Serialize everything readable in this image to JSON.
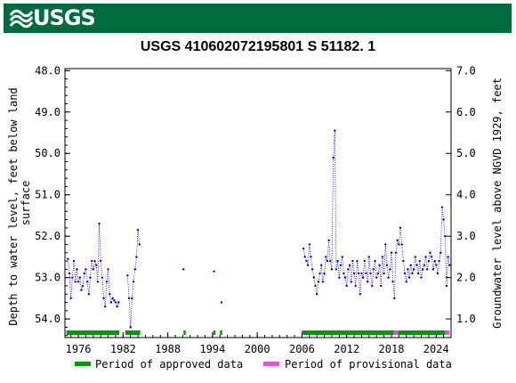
{
  "header": {
    "logo_text": "USGS",
    "title": "USGS 410602072195801 S 51182. 1"
  },
  "colors": {
    "banner": "#006b3f",
    "points": "#0000cc",
    "approved": "#009900",
    "provisional": "#e64de6"
  },
  "chart_data": {
    "type": "scatter",
    "title": "USGS 410602072195801 S 51182. 1",
    "ylabel": "Depth to water level, feet below land surface",
    "y2label": "Groundwater level above NGVD 1929, feet",
    "xlim": [
      1974.2,
      2026.0
    ],
    "ylim": [
      54.45,
      47.95
    ],
    "y_inverted": true,
    "xticks": [
      "1976",
      "1982",
      "1988",
      "1994",
      "2000",
      "2006",
      "2012",
      "2018",
      "2024"
    ],
    "yticks": [
      "48.0",
      "49.0",
      "50.0",
      "51.0",
      "52.0",
      "53.0",
      "54.0"
    ],
    "y2ticks": [
      "7.0",
      "6.0",
      "5.0",
      "4.0",
      "3.0",
      "2.0",
      "1.0"
    ],
    "y2_offset": 55.0,
    "grid": false,
    "legend_position": "bottom",
    "legend": [
      {
        "label": "Period of approved data",
        "color": "#009900"
      },
      {
        "label": "Period of provisional data",
        "color": "#e64de6"
      }
    ],
    "approved_periods": [
      [
        1974.4,
        1981.5
      ],
      [
        1982.3,
        1984.3
      ],
      [
        1990.1,
        1990.4
      ],
      [
        1994.1,
        1994.4
      ],
      [
        1995.0,
        1995.3
      ],
      [
        2006.0,
        2018.3
      ],
      [
        2018.9,
        2025.2
      ]
    ],
    "provisional_periods": [
      [
        2018.3,
        2018.9
      ],
      [
        2025.2,
        2025.8
      ]
    ],
    "series": [
      {
        "x": [
          1974.6,
          1974.8,
          1975.0,
          1975.2,
          1975.4,
          1975.6,
          1975.8,
          1976.0,
          1976.2,
          1976.4,
          1976.6,
          1976.8,
          1977.0,
          1977.2,
          1977.4,
          1977.6,
          1977.8,
          1978.0,
          1978.2,
          1978.4,
          1978.6,
          1978.8,
          1979.0,
          1979.2,
          1979.4,
          1979.6,
          1979.8,
          1980.0,
          1980.2,
          1980.4,
          1980.6,
          1980.8,
          1981.0,
          1981.2,
          1981.4,
          1982.6,
          1982.8,
          1983.0,
          1983.2,
          1983.4,
          1983.6,
          1983.8,
          1984.0,
          1984.2,
          1990.1,
          1994.2,
          1995.2,
          2006.2,
          2006.4,
          2006.6,
          2006.8,
          2007.0,
          2007.2,
          2007.4,
          2007.6,
          2007.8,
          2008.0,
          2008.2,
          2008.4,
          2008.6,
          2008.8,
          2009.0,
          2009.2,
          2009.4,
          2009.6,
          2009.8,
          2010.0,
          2010.2,
          2010.4,
          2010.6,
          2010.8,
          2011.0,
          2011.2,
          2011.4,
          2011.6,
          2011.8,
          2012.0,
          2012.2,
          2012.4,
          2012.6,
          2012.8,
          2013.0,
          2013.2,
          2013.4,
          2013.6,
          2013.8,
          2014.0,
          2014.2,
          2014.4,
          2014.6,
          2014.8,
          2015.0,
          2015.2,
          2015.4,
          2015.6,
          2015.8,
          2016.0,
          2016.2,
          2016.4,
          2016.6,
          2016.8,
          2017.0,
          2017.2,
          2017.4,
          2017.6,
          2017.8,
          2018.0,
          2018.2,
          2018.4,
          2018.6,
          2018.8,
          2019.0,
          2019.2,
          2019.4,
          2019.6,
          2019.8,
          2020.0,
          2020.2,
          2020.4,
          2020.6,
          2020.8,
          2021.0,
          2021.2,
          2021.4,
          2021.6,
          2021.8,
          2022.0,
          2022.2,
          2022.4,
          2022.6,
          2022.8,
          2023.0,
          2023.2,
          2023.4,
          2023.6,
          2023.8,
          2024.0,
          2024.2,
          2024.4,
          2024.6,
          2024.8,
          2025.0,
          2025.2,
          2025.4,
          2025.6,
          2025.8
        ],
        "y": [
          52.55,
          52.9,
          53.5,
          53.0,
          52.6,
          53.1,
          52.8,
          53.1,
          53.0,
          53.3,
          53.2,
          52.9,
          52.8,
          53.1,
          53.4,
          53.0,
          52.6,
          52.8,
          52.6,
          52.7,
          53.1,
          51.7,
          52.6,
          53.0,
          53.5,
          53.7,
          53.1,
          52.8,
          53.4,
          53.6,
          53.5,
          53.55,
          53.6,
          53.7,
          53.6,
          52.95,
          53.5,
          54.2,
          53.5,
          53.1,
          52.8,
          52.5,
          51.85,
          52.2,
          52.8,
          52.85,
          53.6,
          52.3,
          52.5,
          52.6,
          52.7,
          52.2,
          52.5,
          52.8,
          53.0,
          53.2,
          53.4,
          53.1,
          52.9,
          52.7,
          53.1,
          52.9,
          52.5,
          52.6,
          52.1,
          52.6,
          52.8,
          50.1,
          49.45,
          52.8,
          52.6,
          53.0,
          52.7,
          52.5,
          52.9,
          53.0,
          53.2,
          52.8,
          52.7,
          53.1,
          52.6,
          52.9,
          53.2,
          52.6,
          52.9,
          53.4,
          52.9,
          53.0,
          52.6,
          52.9,
          53.1,
          52.5,
          52.9,
          53.2,
          52.8,
          52.6,
          53.0,
          52.9,
          52.7,
          53.2,
          52.5,
          52.9,
          52.2,
          52.7,
          53.0,
          52.8,
          52.4,
          53.1,
          53.5,
          52.4,
          52.1,
          52.2,
          51.8,
          52.2,
          52.6,
          52.9,
          53.1,
          52.8,
          53.0,
          52.7,
          52.9,
          52.8,
          52.5,
          52.7,
          52.9,
          52.6,
          53.0,
          52.8,
          52.7,
          52.5,
          52.8,
          52.6,
          52.4,
          52.5,
          52.8,
          52.6,
          52.7,
          52.9,
          52.6,
          52.4,
          51.3,
          51.6,
          52.0,
          53.2,
          52.5,
          52.7
        ]
      }
    ]
  },
  "legend": {
    "approved_label": "Period of approved data",
    "provisional_label": "Period of provisional data"
  }
}
